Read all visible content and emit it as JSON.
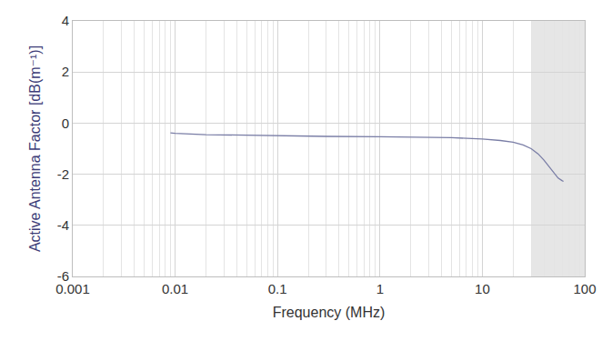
{
  "chart_data": {
    "type": "line",
    "x_label": "Frequency (MHz)",
    "y_label": "Active Antenna Factor [dB(m⁻¹)]",
    "x": [
      0.009,
      0.01,
      0.02,
      0.05,
      0.1,
      0.3,
      1,
      3,
      5,
      10,
      15,
      20,
      25,
      30,
      35,
      40,
      45,
      50,
      55,
      60,
      62
    ],
    "series": [
      {
        "name": "Active Antenna Factor",
        "color": "#7a7ea6",
        "values": [
          -0.38,
          -0.4,
          -0.45,
          -0.48,
          -0.5,
          -0.52,
          -0.53,
          -0.55,
          -0.57,
          -0.62,
          -0.68,
          -0.75,
          -0.85,
          -1.0,
          -1.2,
          -1.45,
          -1.7,
          -1.95,
          -2.15,
          -2.25,
          -2.28
        ]
      }
    ],
    "shaded_x": [
      30,
      100
    ],
    "log": "x",
    "grid": true,
    "xlim": [
      0.001,
      100
    ],
    "xticks": [
      0.001,
      0.01,
      0.1,
      1,
      10,
      100
    ],
    "ylim": [
      -6,
      4
    ],
    "yticks": [
      -6,
      -4,
      -2,
      0,
      2,
      4
    ]
  }
}
